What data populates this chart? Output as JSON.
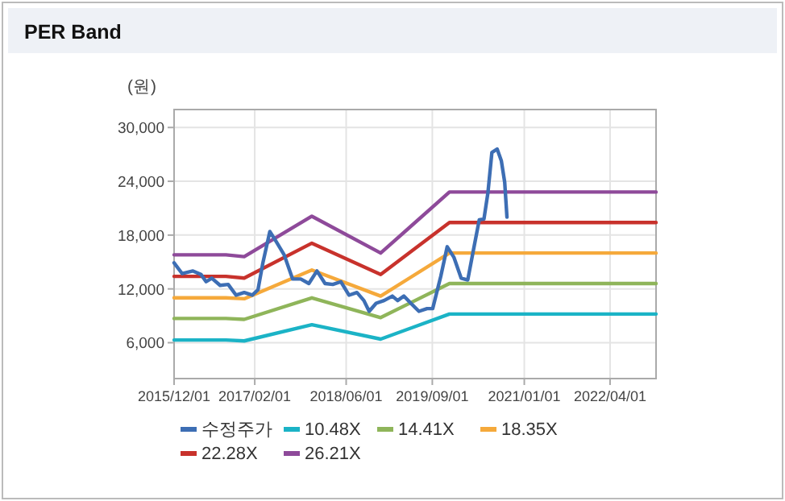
{
  "chart_data": {
    "type": "line",
    "title": "PER Band",
    "ylabel": "(원)",
    "xlim": [
      "2015-12-01",
      "2022-12-01"
    ],
    "xticks": [
      {
        "value": "2015-12-01",
        "label": "2015/12/01"
      },
      {
        "value": "2017-02-01",
        "label": "2017/02/01"
      },
      {
        "value": "2018-06-01",
        "label": "2018/06/01"
      },
      {
        "value": "2019-09-01",
        "label": "2019/09/01"
      },
      {
        "value": "2021-01-01",
        "label": "2021/01/01"
      },
      {
        "value": "2022-04-01",
        "label": "2022/04/01"
      }
    ],
    "ylim": [
      2000,
      32000
    ],
    "yticks": [
      {
        "value": 6000,
        "label": "6,000"
      },
      {
        "value": 12000,
        "label": "12,000"
      },
      {
        "value": 18000,
        "label": "18,000"
      },
      {
        "value": 24000,
        "label": "24,000"
      },
      {
        "value": 30000,
        "label": "30,000"
      }
    ],
    "grid": true,
    "legend": "bottom",
    "line_style": "solid",
    "marker": "none",
    "series": [
      {
        "name": "수정주가",
        "color": "#3d6eb4",
        "x": [
          "2015-12-01",
          "2016-01-13",
          "2016-03-10",
          "2016-04-22",
          "2016-05-19",
          "2016-06-18",
          "2016-08-01",
          "2016-09-13",
          "2016-10-25",
          "2016-12-07",
          "2017-01-19",
          "2017-02-18",
          "2017-03-16",
          "2017-04-22",
          "2017-05-25",
          "2017-07-07",
          "2017-08-21",
          "2017-10-03",
          "2017-11-15",
          "2017-12-28",
          "2018-02-09",
          "2018-03-22",
          "2018-05-04",
          "2018-06-16",
          "2018-07-28",
          "2018-09-03",
          "2018-10-01",
          "2018-11-07",
          "2018-12-19",
          "2019-02-01",
          "2019-03-01",
          "2019-04-03",
          "2019-05-10",
          "2019-06-22",
          "2019-08-04",
          "2019-09-03",
          "2019-10-16",
          "2019-11-19",
          "2019-12-25",
          "2020-02-01",
          "2020-03-07",
          "2020-04-04",
          "2020-05-07",
          "2020-06-01",
          "2020-06-22",
          "2020-07-13",
          "2020-08-10",
          "2020-09-01",
          "2020-09-19",
          "2020-10-01"
        ],
        "values": [
          14900,
          13700,
          14000,
          13600,
          12800,
          13200,
          12400,
          12500,
          11300,
          11600,
          11300,
          11900,
          14900,
          18400,
          17300,
          15800,
          13100,
          13100,
          12600,
          14000,
          12600,
          12500,
          12800,
          11300,
          11600,
          10700,
          9500,
          10400,
          10700,
          11200,
          10700,
          11200,
          10400,
          9500,
          9800,
          9800,
          13400,
          16700,
          15500,
          13200,
          13000,
          16100,
          19700,
          19800,
          22700,
          27200,
          27600,
          26300,
          23900,
          20000
        ]
      },
      {
        "name": "10.48X",
        "color": "#1bb3c6",
        "x": [
          "2015-12-01",
          "2016-09-01",
          "2016-12-07",
          "2017-12-01",
          "2018-12-01",
          "2019-12-01",
          "2022-12-01"
        ],
        "values": [
          6300,
          6300,
          6200,
          8000,
          6400,
          9200,
          9200
        ]
      },
      {
        "name": "14.41X",
        "color": "#8fb55a",
        "x": [
          "2015-12-01",
          "2016-09-01",
          "2016-12-07",
          "2017-12-01",
          "2018-12-01",
          "2019-12-01",
          "2022-12-01"
        ],
        "values": [
          8700,
          8700,
          8600,
          11000,
          8800,
          12600,
          12600
        ]
      },
      {
        "name": "18.35X",
        "color": "#f5a93b",
        "x": [
          "2015-12-01",
          "2016-09-01",
          "2016-12-07",
          "2017-12-01",
          "2018-12-01",
          "2019-12-01",
          "2022-12-01"
        ],
        "values": [
          11000,
          11000,
          10900,
          14100,
          11200,
          16000,
          16000
        ]
      },
      {
        "name": "22.28X",
        "color": "#c8322c",
        "x": [
          "2015-12-01",
          "2016-09-01",
          "2016-12-07",
          "2017-12-01",
          "2018-12-01",
          "2019-12-01",
          "2022-12-01"
        ],
        "values": [
          13400,
          13400,
          13200,
          17100,
          13600,
          19400,
          19400
        ]
      },
      {
        "name": "26.21X",
        "color": "#8e4a9a",
        "x": [
          "2015-12-01",
          "2016-09-01",
          "2016-12-07",
          "2017-12-01",
          "2018-12-01",
          "2019-12-01",
          "2022-12-01"
        ],
        "values": [
          15800,
          15800,
          15600,
          20100,
          16000,
          22800,
          22800
        ]
      }
    ]
  }
}
